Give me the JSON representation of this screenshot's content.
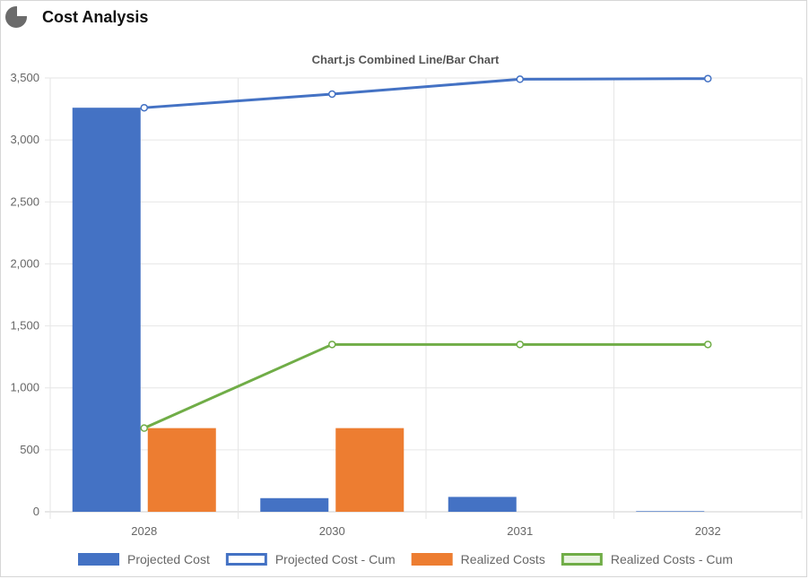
{
  "card": {
    "title": "Cost Analysis",
    "icon": "pie-chart-icon"
  },
  "chart_data": {
    "type": "bar",
    "title": "Chart.js Combined Line/Bar Chart",
    "categories": [
      "2028",
      "2030",
      "2031",
      "2032"
    ],
    "ylim": [
      0,
      3500
    ],
    "yticks": [
      0,
      500,
      1000,
      1500,
      2000,
      2500,
      3000,
      3500
    ],
    "ytick_labels": [
      "0",
      "500",
      "1,000",
      "1,500",
      "2,000",
      "2,500",
      "3,000",
      "3,500"
    ],
    "grid": true,
    "legend_position": "bottom",
    "series": [
      {
        "name": "Projected Cost",
        "type": "bar",
        "color": "#4472c4",
        "values": [
          3260,
          110,
          120,
          5
        ]
      },
      {
        "name": "Projected Cost - Cum",
        "type": "line",
        "color": "#4472c4",
        "values": [
          3260,
          3370,
          3490,
          3495
        ]
      },
      {
        "name": "Realized Costs",
        "type": "bar",
        "color": "#ed7d31",
        "values": [
          675,
          675,
          0,
          0
        ]
      },
      {
        "name": "Realized Costs - Cum",
        "type": "line",
        "color": "#70ad47",
        "values": [
          675,
          1350,
          1350,
          1350
        ]
      }
    ]
  }
}
